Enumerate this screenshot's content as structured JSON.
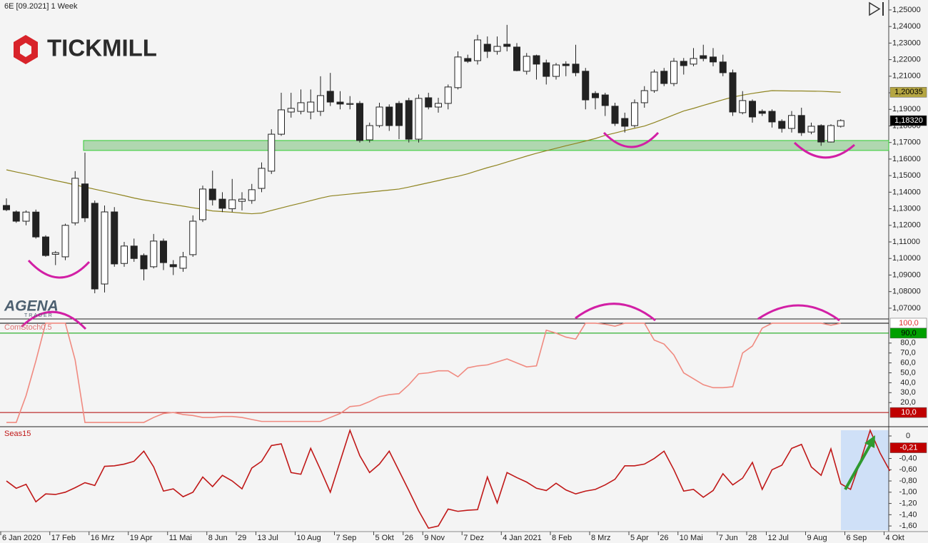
{
  "branding": {
    "tickmill": "TICKMILL",
    "agena": "AGENA",
    "agena_sub": "TRADER"
  },
  "chart_data": [
    {
      "type": "candlestick",
      "title": "6E [09.2021] 1 Week",
      "ylim": [
        1.0635,
        1.256
      ],
      "yticks": [
        {
          "value": 1.25,
          "label": "1,25000"
        },
        {
          "value": 1.24,
          "label": "1,24000"
        },
        {
          "value": 1.23,
          "label": "1,23000"
        },
        {
          "value": 1.22,
          "label": "1,22000"
        },
        {
          "value": 1.21,
          "label": "1,21000"
        },
        {
          "value": 1.2,
          "label": "1,20000"
        },
        {
          "value": 1.19,
          "label": "1,19000"
        },
        {
          "value": 1.18,
          "label": "1,18000"
        },
        {
          "value": 1.17,
          "label": "1,17000"
        },
        {
          "value": 1.16,
          "label": "1,16000"
        },
        {
          "value": 1.15,
          "label": "1,15000"
        },
        {
          "value": 1.14,
          "label": "1,14000"
        },
        {
          "value": 1.13,
          "label": "1,13000"
        },
        {
          "value": 1.12,
          "label": "1,12000"
        },
        {
          "value": 1.11,
          "label": "1,11000"
        },
        {
          "value": 1.1,
          "label": "1,10000"
        },
        {
          "value": 1.09,
          "label": "1,09000"
        },
        {
          "value": 1.08,
          "label": "1,08000"
        },
        {
          "value": 1.07,
          "label": "1,07000"
        }
      ],
      "candles": {
        "up_color": "#ffffff",
        "down_color": "#222222",
        "open": [
          1.132,
          1.1281,
          1.1225,
          1.128,
          1.113,
          1.1025,
          1.101,
          1.1215,
          1.145,
          1.1333,
          1.0846,
          1.1281,
          1.097,
          1.1075,
          1.1018,
          1.095,
          1.1105,
          1.0963,
          1.0941,
          1.1023,
          1.1234,
          1.1419,
          1.1358,
          1.13,
          1.1345,
          1.135,
          1.1423,
          1.1527,
          1.175,
          1.1884,
          1.1888,
          1.1884,
          1.1888,
          1.2009,
          1.1944,
          1.193,
          1.1936,
          1.1716,
          1.1802,
          1.1914,
          1.1936,
          1.1953,
          1.172,
          1.197,
          1.1914,
          1.1936,
          1.2031,
          1.2207,
          1.2194,
          1.2293,
          1.225,
          1.2293,
          1.2276,
          1.213,
          1.2224,
          1.2181,
          1.2099,
          1.2173,
          1.2173,
          1.213,
          1.1996,
          1.1987,
          1.1919,
          1.1845,
          1.1802,
          1.194,
          1.2013,
          1.213,
          1.2056,
          1.219,
          1.2173,
          1.2224,
          1.2216,
          1.2186,
          1.2121,
          1.188,
          1.1949,
          1.1888,
          1.1888,
          1.1828,
          1.1785,
          1.1863,
          1.1763,
          1.1802,
          1.1703,
          1.1798
        ],
        "high": [
          1.1363,
          1.129,
          1.129,
          1.1295,
          1.114,
          1.1045,
          1.121,
          1.1527,
          1.1639,
          1.135,
          1.132,
          1.131,
          1.11,
          1.112,
          1.103,
          1.1148,
          1.112,
          1.099,
          1.104,
          1.126,
          1.144,
          1.153,
          1.14,
          1.148,
          1.14,
          1.145,
          1.158,
          1.178,
          1.2,
          1.2,
          1.202,
          1.202,
          1.21,
          1.212,
          1.201,
          1.198,
          1.195,
          1.182,
          1.194,
          1.193,
          1.195,
          1.197,
          1.199,
          1.2,
          1.197,
          1.205,
          1.225,
          1.223,
          1.235,
          1.234,
          1.234,
          1.241,
          1.23,
          1.224,
          1.223,
          1.22,
          1.218,
          1.219,
          1.229,
          1.215,
          1.201,
          1.2,
          1.194,
          1.188,
          1.196,
          1.204,
          1.214,
          1.215,
          1.221,
          1.221,
          1.227,
          1.229,
          1.227,
          1.223,
          1.214,
          1.201,
          1.196,
          1.19,
          1.19,
          1.184,
          1.189,
          1.191,
          1.182,
          1.181,
          1.181,
          1.184
        ],
        "low": [
          1.1286,
          1.1215,
          1.12,
          1.112,
          1.101,
          1.096,
          1.099,
          1.12,
          1.122,
          1.079,
          1.0795,
          1.095,
          1.095,
          1.098,
          1.0868,
          1.094,
          1.093,
          1.09,
          1.092,
          1.101,
          1.122,
          1.132,
          1.128,
          1.128,
          1.129,
          1.133,
          1.14,
          1.151,
          1.174,
          1.185,
          1.187,
          1.184,
          1.186,
          1.192,
          1.19,
          1.19,
          1.17,
          1.17,
          1.179,
          1.177,
          1.172,
          1.17,
          1.17,
          1.19,
          1.188,
          1.19,
          1.202,
          1.218,
          1.217,
          1.221,
          1.223,
          1.225,
          1.213,
          1.211,
          1.208,
          1.205,
          1.208,
          1.21,
          1.21,
          1.19,
          1.19,
          1.186,
          1.18,
          1.176,
          1.179,
          1.191,
          1.2,
          1.204,
          1.204,
          1.211,
          1.216,
          1.219,
          1.216,
          1.21,
          1.186,
          1.187,
          1.182,
          1.186,
          1.179,
          1.176,
          1.176,
          1.174,
          1.175,
          1.168,
          1.17,
          1.179
        ],
        "close": [
          1.1294,
          1.1225,
          1.128,
          1.113,
          1.1018,
          1.1035,
          1.12,
          1.1484,
          1.1245,
          1.0816,
          1.1281,
          1.0967,
          1.1075,
          1.1,
          1.0937,
          1.1105,
          1.0975,
          1.095,
          1.101,
          1.1225,
          1.1419,
          1.1354,
          1.1303,
          1.1354,
          1.1358,
          1.1415,
          1.1544,
          1.175,
          1.1897,
          1.1906,
          1.194,
          1.1944,
          1.1983,
          1.1944,
          1.1932,
          1.1935,
          1.1712,
          1.1802,
          1.1914,
          1.1802,
          1.1802,
          1.172,
          1.1966,
          1.1914,
          1.1936,
          1.2035,
          1.2216,
          1.219,
          1.2319,
          1.225,
          1.228,
          1.228,
          1.2134,
          1.222,
          1.2173,
          1.2099,
          1.2168,
          1.2164,
          1.2121,
          1.1957,
          1.197,
          1.1923,
          1.1815,
          1.1798,
          1.194,
          1.2013,
          1.2125,
          1.2056,
          1.219,
          1.2164,
          1.2207,
          1.2207,
          1.2186,
          1.2121,
          1.1884,
          1.1953,
          1.1854,
          1.1876,
          1.1824,
          1.1785,
          1.1863,
          1.1759,
          1.1798,
          1.1703,
          1.1802,
          1.1832
        ]
      },
      "ma": {
        "color": "#8f8420",
        "values": [
          1.1535,
          1.1522,
          1.151,
          1.1497,
          1.1483,
          1.147,
          1.1458,
          1.1444,
          1.1431,
          1.1418,
          1.1405,
          1.1392,
          1.1379,
          1.1365,
          1.1353,
          1.1344,
          1.1334,
          1.1325,
          1.1316,
          1.1306,
          1.1297,
          1.1287,
          1.1283,
          1.1279,
          1.1274,
          1.127,
          1.1274,
          1.129,
          1.1305,
          1.132,
          1.1334,
          1.1349,
          1.1364,
          1.1377,
          1.1383,
          1.1389,
          1.1395,
          1.1401,
          1.1407,
          1.1413,
          1.1419,
          1.1431,
          1.1444,
          1.1457,
          1.147,
          1.1484,
          1.1496,
          1.1511,
          1.153,
          1.1548,
          1.1564,
          1.1582,
          1.16,
          1.1618,
          1.1635,
          1.165,
          1.1665,
          1.168,
          1.1694,
          1.1709,
          1.1724,
          1.1743,
          1.1757,
          1.1772,
          1.1786,
          1.1799,
          1.182,
          1.1843,
          1.1867,
          1.189,
          1.1906,
          1.1924,
          1.1941,
          1.1958,
          1.1974,
          1.1986,
          1.1996,
          1.2005,
          1.2013,
          1.2012,
          1.2011,
          1.2011,
          1.201,
          1.2009,
          1.2006,
          1.20035
        ]
      },
      "zone": {
        "range": [
          1.1652,
          1.1712
        ],
        "color": "#9fcf9f"
      },
      "markers": [
        {
          "value": 1.20035,
          "label": "1,20035",
          "color": "#b5a642",
          "text_color": "#000000"
        },
        {
          "value": 1.1832,
          "label": "1,18320",
          "color": "#000000",
          "text_color": "#ffffff"
        }
      ]
    },
    {
      "type": "line",
      "title": "ComStoch0.5",
      "color": "#f08a80",
      "ylim": [
        -4.3,
        104.3
      ],
      "yticks": [
        {
          "value": 80,
          "label": "80,0"
        },
        {
          "value": 70,
          "label": "70,0"
        },
        {
          "value": 60,
          "label": "60,0"
        },
        {
          "value": 50,
          "label": "50,0"
        },
        {
          "value": 40,
          "label": "40,0"
        },
        {
          "value": 30,
          "label": "30,0"
        },
        {
          "value": 20,
          "label": "20,0"
        }
      ],
      "levels": [
        {
          "value": 100,
          "label": "100,0",
          "color": "#000000",
          "box": "#ffffff",
          "text_color": "#e03030"
        },
        {
          "value": 90,
          "label": "90,0",
          "color": "#00a000",
          "box": "#00a000",
          "text_color": "#000000"
        },
        {
          "value": 10,
          "label": "10,0",
          "color": "#b00000",
          "box": "#c00000",
          "text_color": "#ffffff"
        }
      ],
      "values": [
        0,
        0,
        27,
        62,
        100,
        100,
        100,
        63,
        0,
        0,
        0,
        0,
        0,
        0,
        0,
        5,
        9,
        10,
        8,
        7,
        5,
        5,
        6,
        6,
        5,
        3,
        1,
        1,
        1,
        1,
        1,
        1,
        1,
        5,
        9,
        16,
        17,
        21,
        26,
        28,
        29,
        38,
        49,
        50,
        52,
        52,
        46,
        55,
        57,
        58,
        61,
        64,
        60,
        56,
        57,
        93,
        90,
        86,
        84,
        100,
        100,
        99,
        97,
        100,
        100,
        100,
        83,
        79,
        68,
        50,
        44,
        38,
        35,
        35,
        36,
        70,
        77,
        95,
        100,
        100,
        100,
        100,
        100,
        100,
        98,
        100
      ]
    },
    {
      "type": "line",
      "title": "Seas15",
      "color": "#c01818",
      "ylim": [
        -1.7,
        0.165
      ],
      "yticks": [
        0,
        {
          "value": -0.4,
          "label": "-0,40"
        },
        {
          "value": -0.6,
          "label": "-0,60"
        },
        {
          "value": -0.8,
          "label": "-0,80"
        },
        {
          "value": -1.0,
          "label": "-1,00"
        },
        {
          "value": -1.2,
          "label": "-1,20"
        },
        {
          "value": -1.4,
          "label": "-1,40"
        },
        {
          "value": -1.6,
          "label": "-1,60"
        }
      ],
      "markers": [
        {
          "value": -0.21,
          "label": "-0,21",
          "color": "#c00000",
          "text_color": "#ffffff"
        }
      ],
      "categories": [
        "6 Jan 2020",
        null,
        null,
        null,
        null,
        "17 Feb",
        null,
        null,
        null,
        "16 Mrz",
        null,
        null,
        null,
        "19 Apr",
        null,
        null,
        null,
        "11 Mai",
        null,
        null,
        null,
        "8 Jun",
        null,
        null,
        "29",
        null,
        "13 Jul",
        null,
        null,
        null,
        "10 Aug",
        null,
        null,
        null,
        "7 Sep",
        null,
        null,
        null,
        "5 Okt",
        null,
        null,
        "26",
        null,
        "9 Nov",
        null,
        null,
        null,
        "7 Dez",
        null,
        null,
        null,
        "4 Jan 2021",
        null,
        null,
        null,
        null,
        "8 Feb",
        null,
        null,
        null,
        "8 Mrz",
        null,
        null,
        null,
        "5 Apr",
        null,
        null,
        "26",
        null,
        "10 Mai",
        null,
        null,
        null,
        "7 Jun",
        null,
        null,
        "28",
        null,
        "12 Jul",
        null,
        null,
        null,
        "9 Aug",
        null,
        null,
        null,
        "6 Sep",
        null,
        null,
        null,
        "4 Okt"
      ],
      "values": [
        -0.8,
        -0.93,
        -0.86,
        -1.17,
        -1.03,
        -1.04,
        -1.0,
        -0.92,
        -0.83,
        -0.88,
        -0.54,
        -0.53,
        -0.5,
        -0.45,
        -0.27,
        -0.55,
        -0.98,
        -0.94,
        -1.08,
        -1.0,
        -0.73,
        -0.9,
        -0.7,
        -0.8,
        -0.94,
        -0.57,
        -0.45,
        -0.17,
        -0.14,
        -0.65,
        -0.68,
        -0.22,
        -0.6,
        -1.0,
        -0.45,
        0.1,
        -0.35,
        -0.65,
        -0.5,
        -0.27,
        -0.62,
        -0.97,
        -1.33,
        -1.64,
        -1.6,
        -1.3,
        -1.34,
        -1.32,
        -1.31,
        -0.73,
        -1.19,
        -0.65,
        -0.74,
        -0.82,
        -0.93,
        -0.97,
        -0.84,
        -0.96,
        -1.03,
        -0.98,
        -0.95,
        -0.87,
        -0.77,
        -0.53,
        -0.53,
        -0.5,
        -0.4,
        -0.27,
        -0.6,
        -0.98,
        -0.95,
        -1.09,
        -0.97,
        -0.67,
        -0.87,
        -0.75,
        -0.47,
        -0.95,
        -0.6,
        -0.52,
        -0.22,
        -0.15,
        -0.55,
        -0.7,
        -0.23,
        -0.85,
        -0.95,
        -0.45,
        0.1,
        -0.3,
        -0.62
      ]
    }
  ]
}
